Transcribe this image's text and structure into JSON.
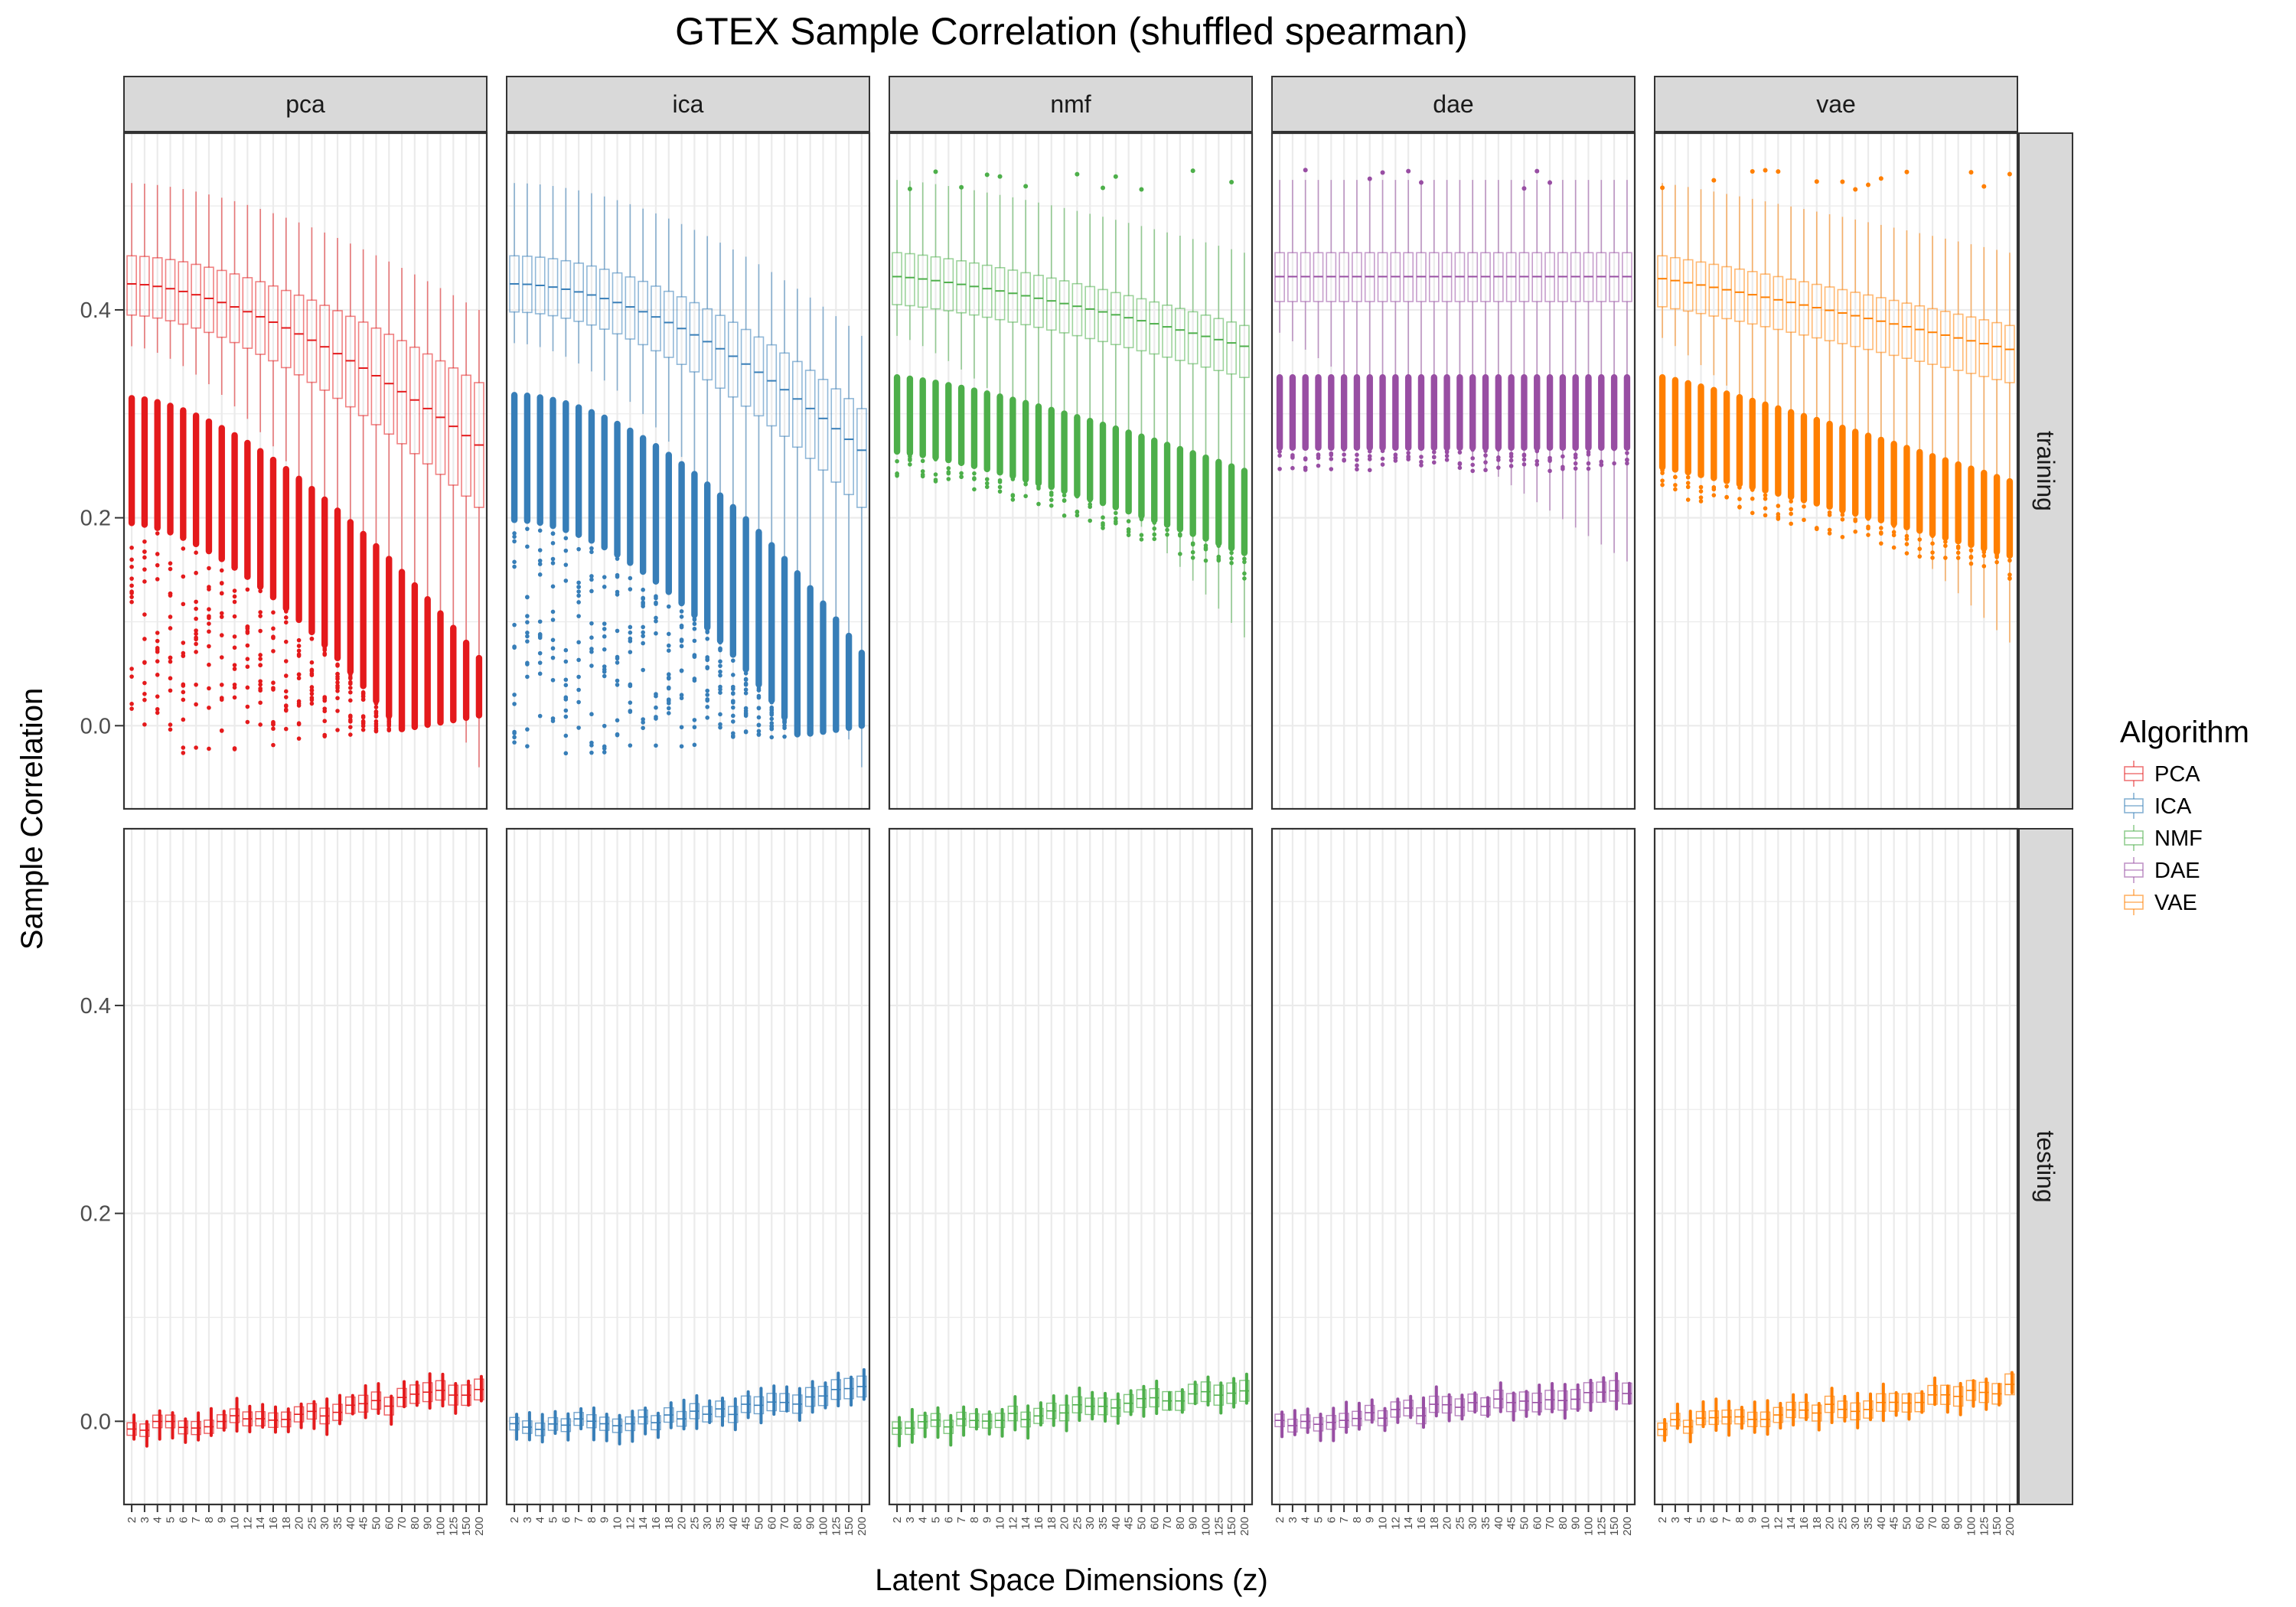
{
  "chart_data": {
    "type": "boxplot",
    "title": "GTEX Sample Correlation (shuffled spearman)",
    "xlabel": "Latent Space Dimensions (z)",
    "ylabel": "Sample Correlation",
    "ylim": [
      -0.08,
      0.57
    ],
    "y_ticks": [
      0.0,
      0.2,
      0.4
    ],
    "y_tick_labels": [
      "0.0",
      "0.2",
      "0.4"
    ],
    "x_categories": [
      "2",
      "3",
      "4",
      "5",
      "6",
      "7",
      "8",
      "9",
      "10",
      "12",
      "14",
      "16",
      "18",
      "20",
      "25",
      "30",
      "35",
      "40",
      "45",
      "50",
      "60",
      "70",
      "80",
      "90",
      "100",
      "125",
      "150",
      "200"
    ],
    "facet_columns": [
      "pca",
      "ica",
      "nmf",
      "dae",
      "vae"
    ],
    "facet_rows": [
      "training",
      "testing"
    ],
    "legend": {
      "title": "Algorithm",
      "position": "right",
      "items": [
        {
          "label": "PCA",
          "color": "#E41A1C"
        },
        {
          "label": "ICA",
          "color": "#377EB8"
        },
        {
          "label": "NMF",
          "color": "#4DAF4A"
        },
        {
          "label": "DAE",
          "color": "#984EA3"
        },
        {
          "label": "VAE",
          "color": "#FF7F00"
        }
      ]
    },
    "grid": true,
    "real_box_summary": {
      "training": {
        "pca": {
          "median": [
            0.425,
            0.27
          ],
          "q1": [
            0.395,
            0.21
          ],
          "q3": [
            0.452,
            0.33
          ]
        },
        "ica": {
          "median": [
            0.425,
            0.265
          ],
          "q1": [
            0.398,
            0.21
          ],
          "q3": [
            0.452,
            0.305
          ]
        },
        "nmf": {
          "median": [
            0.432,
            0.365
          ],
          "q1": [
            0.405,
            0.335
          ],
          "q3": [
            0.455,
            0.385
          ]
        },
        "dae": {
          "median": [
            0.432,
            0.432
          ],
          "q1": [
            0.408,
            0.408
          ],
          "q3": [
            0.455,
            0.455
          ]
        },
        "vae": {
          "median": [
            0.43,
            0.362
          ],
          "q1": [
            0.403,
            0.33
          ],
          "q3": [
            0.452,
            0.385
          ]
        }
      },
      "testing_median_range": [
        -0.005,
        0.035
      ]
    },
    "shuffled_outlier_summary": {
      "training": {
        "pca": {
          "top": [
            0.315,
            0.065
          ],
          "bottom": [
            -0.03,
            0.01
          ]
        },
        "ica": {
          "top": [
            0.318,
            0.07
          ],
          "bottom": [
            -0.03,
            0.0
          ]
        },
        "nmf": {
          "top": [
            0.335,
            0.245
          ],
          "bottom": [
            0.24,
            0.14
          ]
        },
        "dae": {
          "top": [
            0.335,
            0.335
          ],
          "bottom": [
            0.245,
            0.245
          ]
        },
        "vae": {
          "top": [
            0.335,
            0.235
          ],
          "bottom": [
            0.22,
            0.14
          ]
        }
      },
      "testing": {
        "range": [
          -0.02,
          0.05
        ]
      }
    }
  }
}
